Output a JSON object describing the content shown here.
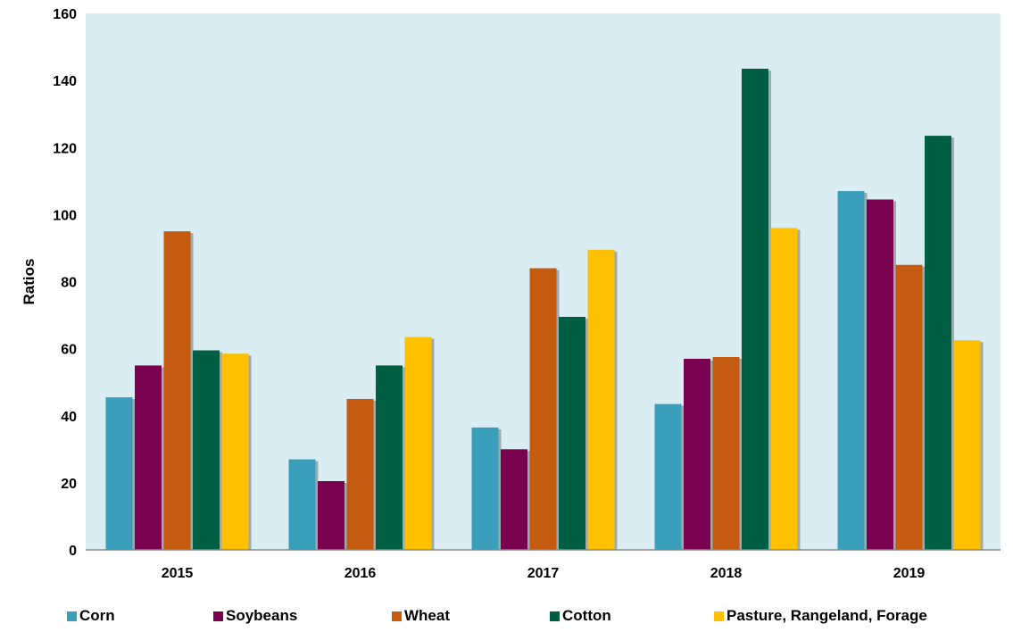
{
  "chart_data": {
    "type": "bar",
    "title": "",
    "xlabel": "",
    "ylabel": "Ratios",
    "ylim": [
      0,
      160
    ],
    "yticks": [
      "0",
      "20",
      "40",
      "60",
      "80",
      "100",
      "120",
      "140",
      "160"
    ],
    "grid": false,
    "legend_position": "bottom",
    "plot_background": "#daedf3",
    "categories": [
      "2015",
      "2016",
      "2017",
      "2018",
      "2019"
    ],
    "series": [
      {
        "name": "Corn",
        "color": "#3a9fba",
        "values": [
          45.5,
          27,
          36.5,
          43.5,
          107
        ]
      },
      {
        "name": "Soybeans",
        "color": "#7a0050",
        "values": [
          55,
          20.5,
          30,
          57,
          104.5
        ]
      },
      {
        "name": "Wheat",
        "color": "#c55a11",
        "values": [
          95,
          45,
          84,
          57.5,
          85
        ]
      },
      {
        "name": "Cotton",
        "color": "#005e43",
        "values": [
          59.5,
          55,
          69.5,
          143.5,
          123.5
        ]
      },
      {
        "name": "Pasture, Rangeland, Forage",
        "color": "#ffc000",
        "values": [
          58.5,
          63.5,
          89.5,
          96,
          62.5
        ]
      }
    ]
  }
}
